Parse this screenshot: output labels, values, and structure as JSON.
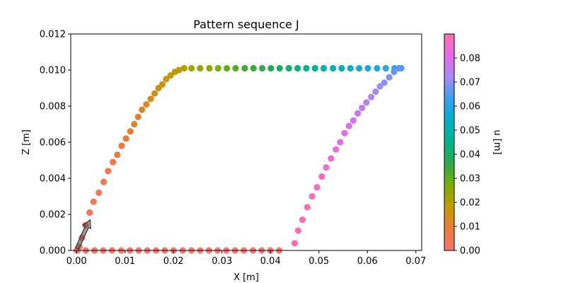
{
  "chart_data": {
    "type": "scatter",
    "title": "Pattern sequence J",
    "xlabel": "X [m]",
    "ylabel": "Z [m]",
    "xlim": [
      -0.0012,
      0.0712
    ],
    "ylim": [
      0.0,
      0.012
    ],
    "xticks": [
      "0.00",
      "0.01",
      "0.02",
      "0.03",
      "0.04",
      "0.05",
      "0.06",
      "0.07"
    ],
    "yticks": [
      "0.000",
      "0.002",
      "0.004",
      "0.006",
      "0.008",
      "0.010",
      "0.012"
    ],
    "grid": false,
    "colorbar": {
      "label": "u [m]",
      "range": [
        0.0,
        0.09
      ],
      "ticks": [
        "0.00",
        "0.01",
        "0.02",
        "0.03",
        "0.04",
        "0.05",
        "0.06",
        "0.07",
        "0.08"
      ],
      "colormap": [
        "#f8766d",
        "#e97b3a",
        "#c49a00",
        "#7cae00",
        "#2fa84a",
        "#00b389",
        "#00b0c8",
        "#39a0f0",
        "#a48bf0",
        "#e66ae8",
        "#ff6eb0"
      ]
    },
    "annotations": [
      {
        "type": "arrow",
        "from": [
          0.0001,
          0.0001
        ],
        "to": [
          0.0028,
          0.0017
        ],
        "color": "#555555"
      }
    ],
    "series": [
      {
        "x": [
          0.0,
          0.0006,
          0.0011,
          0.0018,
          0.0027,
          0.0035,
          0.0046,
          0.0056,
          0.0065,
          0.0075,
          0.0084,
          0.0093,
          0.0102,
          0.0111,
          0.0119,
          0.0127,
          0.0135,
          0.0144,
          0.0153,
          0.0161,
          0.0169,
          0.0177,
          0.0185,
          0.0194,
          0.0203,
          0.0211,
          0.0222
        ],
        "y": [
          0.0,
          0.0002,
          0.0007,
          0.0014,
          0.0021,
          0.0027,
          0.0032,
          0.0038,
          0.0044,
          0.0049,
          0.0053,
          0.0058,
          0.0062,
          0.0066,
          0.007,
          0.0074,
          0.0078,
          0.0081,
          0.0084,
          0.0087,
          0.009,
          0.0092,
          0.0095,
          0.0097,
          0.0099,
          0.01,
          0.0101
        ],
        "u": [
          0.0,
          0.0006,
          0.0012,
          0.0019,
          0.0027,
          0.0035,
          0.0043,
          0.0051,
          0.0059,
          0.0067,
          0.0075,
          0.0083,
          0.0091,
          0.0099,
          0.0107,
          0.0115,
          0.0123,
          0.0131,
          0.0139,
          0.0147,
          0.0155,
          0.0163,
          0.0171,
          0.0179,
          0.0187,
          0.0195,
          0.0203
        ]
      },
      {
        "x": [
          0.0237,
          0.0255,
          0.0274,
          0.0292,
          0.031,
          0.0328,
          0.0347,
          0.0365,
          0.0383,
          0.0401,
          0.0419,
          0.0438,
          0.0456,
          0.0474,
          0.0492,
          0.051,
          0.0529,
          0.0547,
          0.0565,
          0.0583,
          0.0601,
          0.062,
          0.0638,
          0.0656,
          0.067
        ],
        "y": [
          0.0101,
          0.0101,
          0.0101,
          0.0101,
          0.0101,
          0.0101,
          0.0101,
          0.0101,
          0.0101,
          0.0101,
          0.0101,
          0.0101,
          0.0101,
          0.0101,
          0.0101,
          0.0101,
          0.0101,
          0.0101,
          0.0101,
          0.0101,
          0.0101,
          0.0101,
          0.0101,
          0.0101,
          0.0101
        ],
        "u": [
          0.0218,
          0.0236,
          0.0254,
          0.0272,
          0.029,
          0.0308,
          0.0326,
          0.0344,
          0.0362,
          0.038,
          0.0398,
          0.0416,
          0.0434,
          0.0452,
          0.047,
          0.0488,
          0.0506,
          0.0524,
          0.0542,
          0.056,
          0.0578,
          0.0596,
          0.0614,
          0.0632,
          0.0646
        ]
      },
      {
        "x": [
          0.0665,
          0.0655,
          0.0645,
          0.0635,
          0.0626,
          0.0617,
          0.0608,
          0.0598,
          0.0589,
          0.058,
          0.0571,
          0.0562,
          0.0553,
          0.0544,
          0.0535,
          0.0525,
          0.0515,
          0.0506,
          0.0496,
          0.0486,
          0.0476,
          0.0466,
          0.0457,
          0.045
        ],
        "y": [
          0.0101,
          0.0099,
          0.0096,
          0.0093,
          0.0091,
          0.0088,
          0.0085,
          0.0082,
          0.0079,
          0.0076,
          0.0072,
          0.0069,
          0.0065,
          0.006,
          0.0056,
          0.0051,
          0.0046,
          0.0041,
          0.0035,
          0.003,
          0.0024,
          0.0017,
          0.0011,
          0.0004
        ],
        "u": [
          0.066,
          0.0672,
          0.0684,
          0.0696,
          0.0708,
          0.072,
          0.0732,
          0.0744,
          0.0756,
          0.0768,
          0.078,
          0.0792,
          0.0804,
          0.0816,
          0.0828,
          0.084,
          0.0852,
          0.0864,
          0.0876,
          0.0888,
          0.0896,
          0.0902,
          0.0906,
          0.0898
        ]
      },
      {
        "x": [
          0.0418,
          0.04,
          0.0382,
          0.0364,
          0.0345,
          0.0327,
          0.0309,
          0.0291,
          0.0273,
          0.0255,
          0.0237,
          0.0219,
          0.02,
          0.0182,
          0.0164,
          0.0146,
          0.0128,
          0.011,
          0.0092,
          0.0073,
          0.0055,
          0.0037,
          0.0019,
          0.0002
        ],
        "y": [
          0.0,
          0.0,
          0.0,
          0.0,
          0.0,
          0.0,
          0.0,
          0.0,
          0.0,
          0.0,
          0.0,
          0.0,
          0.0,
          0.0,
          0.0,
          0.0,
          0.0,
          0.0,
          0.0,
          0.0,
          0.0,
          0.0,
          0.0,
          0.0
        ],
        "u": [
          0.0,
          0.0,
          0.0,
          0.0,
          0.0,
          0.0,
          0.0,
          0.0,
          0.0,
          0.0,
          0.0,
          0.0,
          0.0,
          0.0,
          0.0,
          0.0,
          0.0,
          0.0,
          0.0,
          0.0,
          0.0,
          0.0,
          0.0,
          0.0
        ]
      }
    ]
  }
}
